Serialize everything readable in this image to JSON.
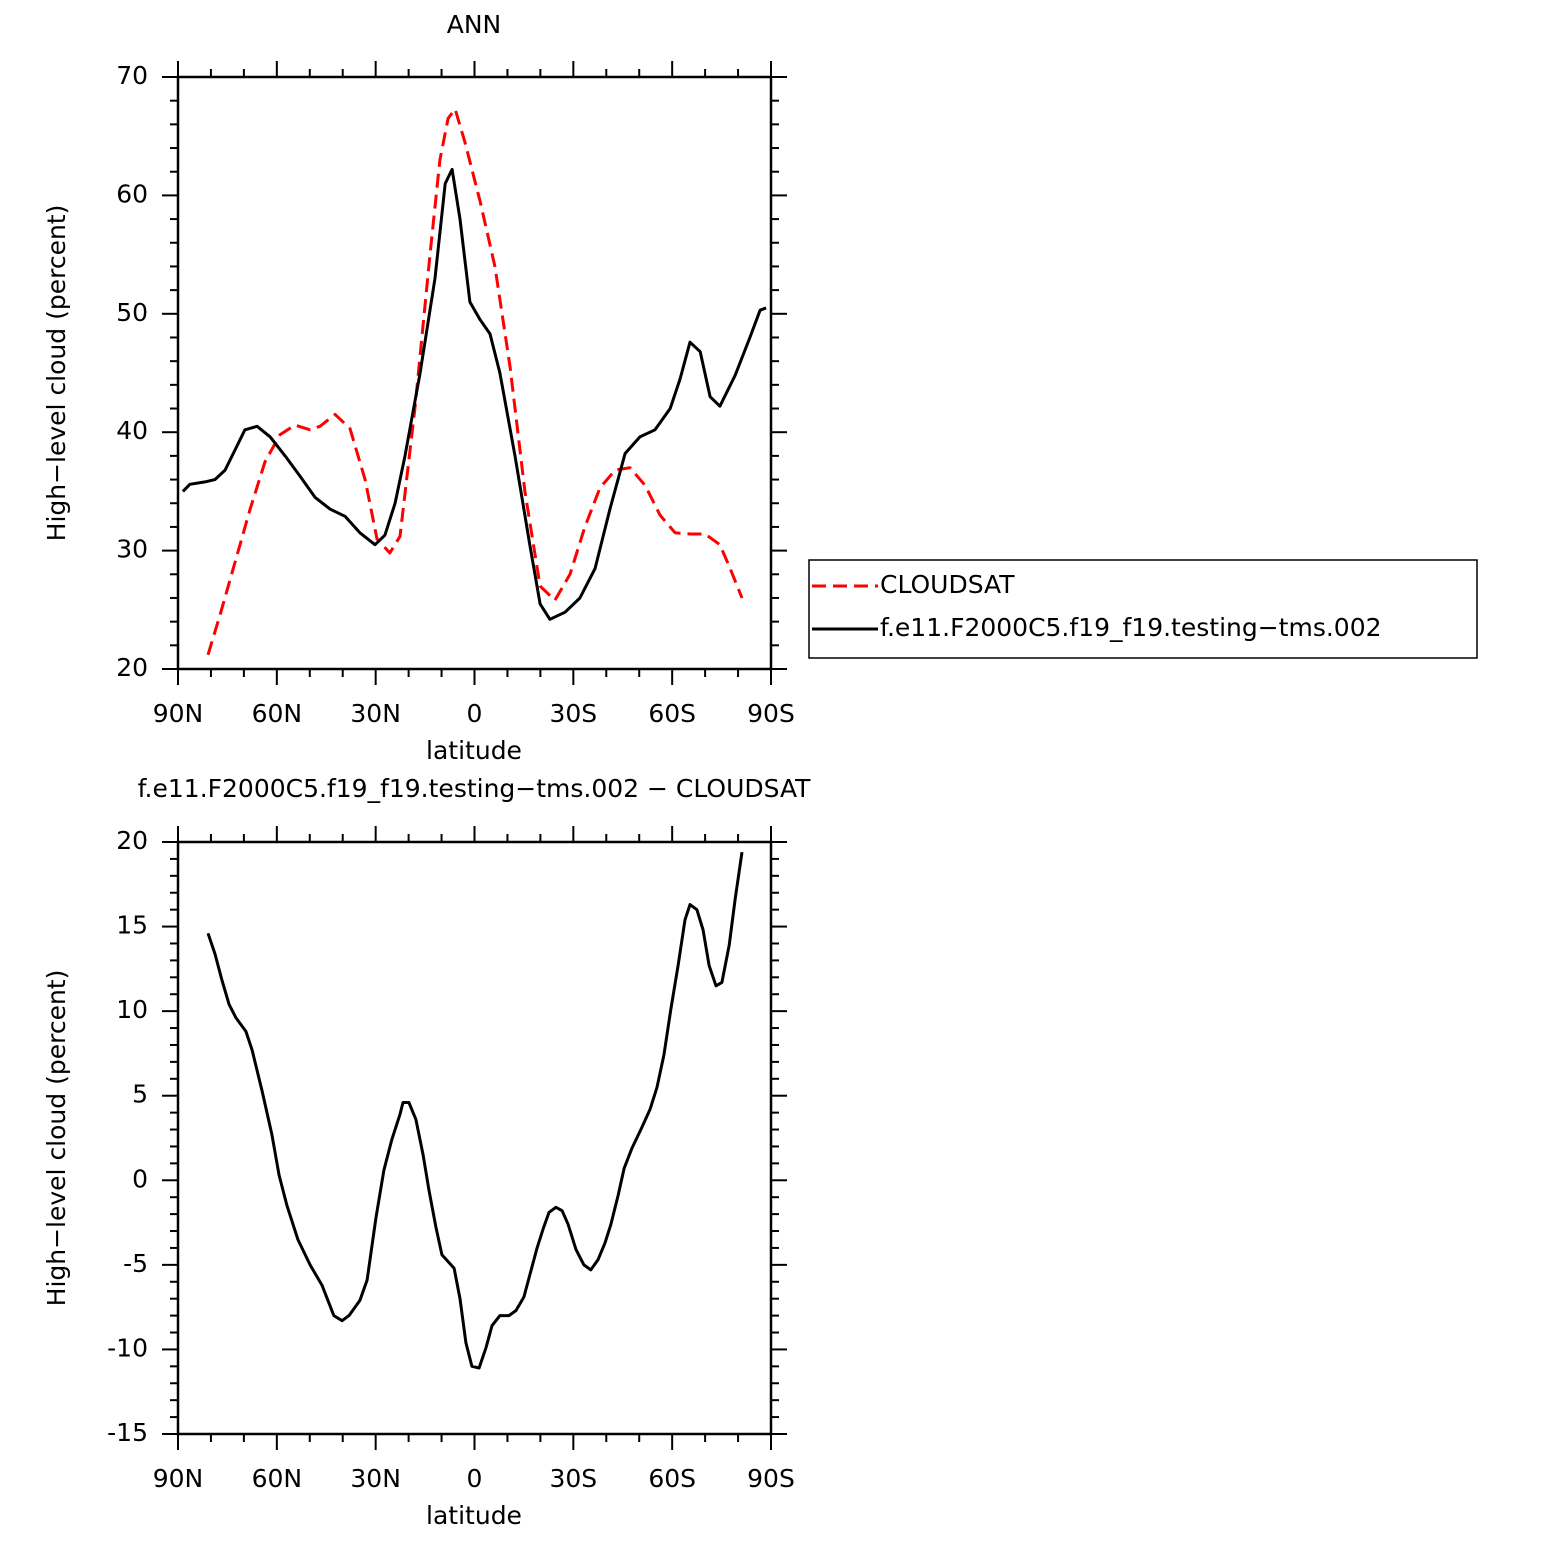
{
  "chart_data": [
    {
      "type": "line",
      "title": "ANN",
      "xlabel": "latitude",
      "ylabel": "High−level cloud (percent)",
      "xlim": [
        90,
        -90
      ],
      "ylim": [
        20,
        70
      ],
      "xticks": [
        {
          "value": 90,
          "label": "90N"
        },
        {
          "value": 60,
          "label": "60N"
        },
        {
          "value": 30,
          "label": "30N"
        },
        0,
        {
          "value": -30,
          "label": "30S"
        },
        {
          "value": -60,
          "label": "60S"
        },
        {
          "value": -90,
          "label": "90S"
        }
      ],
      "yticks": [
        20,
        30,
        40,
        50,
        60,
        70
      ],
      "legend": "outside-right",
      "series": [
        {
          "name": "CLOUDSAT",
          "color": "#ff0000",
          "dashed": true,
          "x": [
            80.9,
            77.3,
            72.7,
            68.1,
            63.6,
            59,
            54.5,
            49.9,
            46.9,
            42.3,
            37.8,
            33.2,
            29.6,
            25.7,
            22.6,
            18.1,
            13.5,
            10.5,
            8,
            5.9,
            2.9,
            -1.7,
            -6.2,
            -10.8,
            -15.3,
            -19.9,
            -24.4,
            -29,
            -33.5,
            -38.1,
            -42.7,
            -47.2,
            -51.8,
            -56.3,
            -60.9,
            -65.4,
            -70,
            -74.5,
            -77.6,
            -81.2
          ],
          "values": [
            21.2,
            24.5,
            29,
            33.5,
            37.5,
            39.8,
            40.6,
            40.2,
            40.5,
            41.5,
            40.3,
            36,
            31,
            29.8,
            31.2,
            42,
            55,
            63,
            66.5,
            67.3,
            64.5,
            59.5,
            54,
            45.5,
            35,
            27,
            25.8,
            28,
            32,
            35.3,
            36.8,
            37,
            35.5,
            33,
            31.5,
            31.4,
            31.4,
            30.5,
            28.5,
            26
          ]
        },
        {
          "name": "f.e11.F2000C5.f19_f19.testing−tms.002",
          "color": "#000000",
          "dashed": false,
          "x": [
            88.5,
            86.4,
            81.8,
            78.8,
            75.7,
            72.7,
            69.7,
            66,
            62,
            57.5,
            53,
            48.4,
            43.8,
            39.3,
            34.8,
            30.2,
            27.2,
            24.1,
            21.1,
            16.5,
            12,
            8.9,
            6.8,
            4.4,
            1.4,
            -1.7,
            -4.7,
            -7.7,
            -12.3,
            -16.8,
            -19.9,
            -22.9,
            -27.5,
            -32,
            -36.6,
            -41.1,
            -45.7,
            -50.2,
            -54.8,
            -59.4,
            -62.4,
            -65.4,
            -68.5,
            -71.5,
            -74.5,
            -79.1,
            -83.6,
            -86.7,
            -88.5
          ],
          "values": [
            35,
            35.6,
            35.8,
            36,
            36.8,
            38.5,
            40.2,
            40.5,
            39.6,
            38,
            36.3,
            34.5,
            33.5,
            32.9,
            31.5,
            30.5,
            31.3,
            34,
            38,
            45,
            53,
            61,
            62.2,
            58,
            51,
            49.5,
            48.3,
            45,
            38,
            30.5,
            25.5,
            24.2,
            24.8,
            26,
            28.5,
            33.5,
            38.2,
            39.6,
            40.2,
            42,
            44.5,
            47.6,
            46.8,
            43,
            42.2,
            44.8,
            48,
            50.3,
            50.5
          ]
        }
      ]
    },
    {
      "type": "line",
      "title": "f.e11.F2000C5.f19_f19.testing−tms.002 − CLOUDSAT",
      "xlabel": "latitude",
      "ylabel": "High−level cloud (percent)",
      "xlim": [
        90,
        -90
      ],
      "ylim": [
        -15,
        20
      ],
      "xticks": [
        {
          "value": 90,
          "label": "90N"
        },
        {
          "value": 60,
          "label": "60N"
        },
        {
          "value": 30,
          "label": "30N"
        },
        0,
        {
          "value": -30,
          "label": "30S"
        },
        {
          "value": -60,
          "label": "60S"
        },
        {
          "value": -90,
          "label": "90S"
        }
      ],
      "yticks": [
        -15,
        -10,
        -5,
        0,
        5,
        10,
        15,
        20
      ],
      "series": [
        {
          "color": "#000000",
          "dashed": false,
          "x": [
            80.9,
            78.8,
            76.6,
            74.5,
            72.4,
            69.4,
            67.5,
            64.5,
            61.5,
            59.3,
            56.9,
            53.6,
            49.9,
            46.3,
            42.7,
            40.2,
            38.1,
            34.8,
            32.6,
            29.9,
            27.5,
            25.1,
            22.6,
            21.7,
            19.9,
            17.8,
            15.6,
            13.8,
            11.7,
            9.9,
            6.2,
            4.4,
            2.6,
            0.8,
            -1.4,
            -3.5,
            -5.3,
            -7.7,
            -10.5,
            -12.6,
            -15,
            -16.8,
            -19,
            -20.8,
            -22.6,
            -24.7,
            -26.6,
            -28.4,
            -30.8,
            -33.2,
            -35.3,
            -37.5,
            -39.6,
            -41.4,
            -43.6,
            -45.4,
            -47.8,
            -50.5,
            -53.3,
            -55.4,
            -57.5,
            -59.6,
            -61.8,
            -63.9,
            -65.4,
            -67.5,
            -69.4,
            -71.2,
            -73.3,
            -75.1,
            -77.3,
            -79.1,
            -81.2
          ],
          "values": [
            14.6,
            13.4,
            11.8,
            10.4,
            9.6,
            8.8,
            7.7,
            5.3,
            2.7,
            0.3,
            -1.5,
            -3.5,
            -5,
            -6.2,
            -8,
            -8.3,
            -8,
            -7.1,
            -5.9,
            -2.2,
            0.6,
            2.4,
            3.9,
            4.6,
            4.6,
            3.6,
            1.5,
            -0.6,
            -2.8,
            -4.4,
            -5.2,
            -7,
            -9.6,
            -11,
            -11.1,
            -9.9,
            -8.6,
            -8,
            -8,
            -7.7,
            -6.9,
            -5.6,
            -4,
            -2.9,
            -1.9,
            -1.6,
            -1.8,
            -2.6,
            -4.1,
            -5,
            -5.3,
            -4.7,
            -3.7,
            -2.6,
            -0.9,
            0.7,
            1.9,
            3,
            4.2,
            5.5,
            7.4,
            10.1,
            12.7,
            15.4,
            16.3,
            16,
            14.8,
            12.7,
            11.5,
            11.7,
            13.9,
            16.6,
            19.4
          ]
        }
      ]
    }
  ]
}
